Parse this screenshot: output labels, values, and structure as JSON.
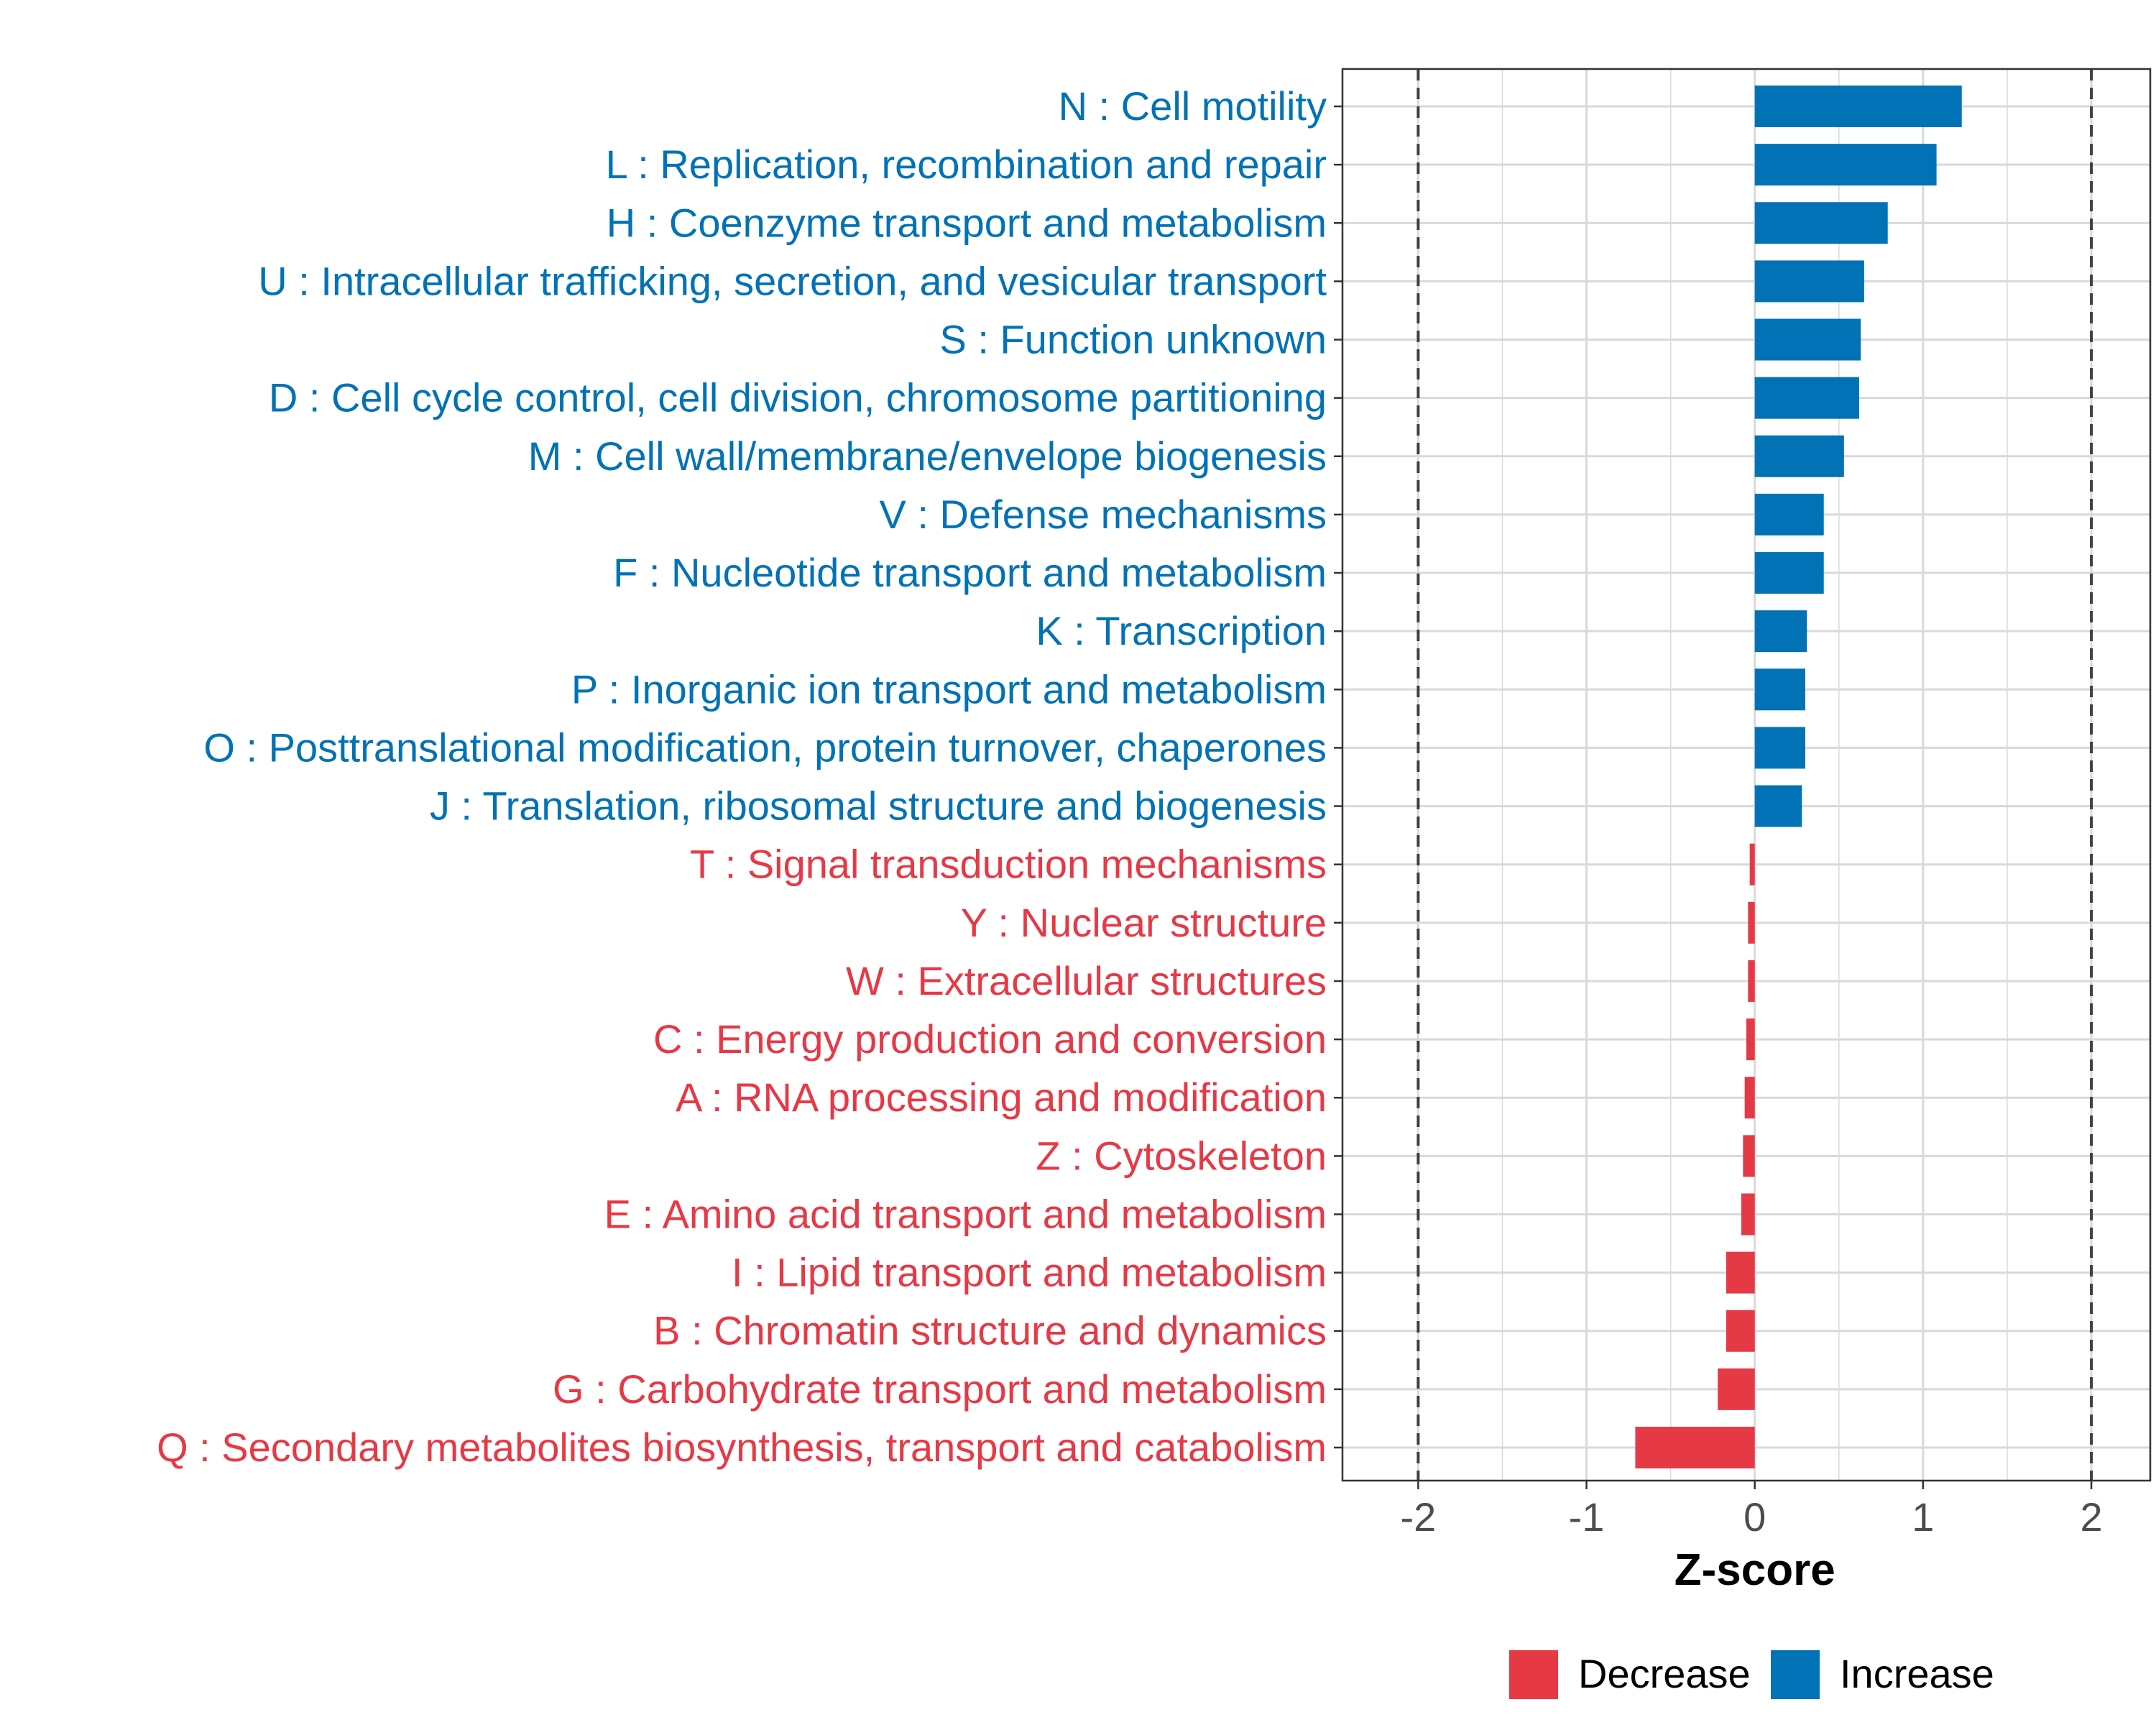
{
  "colors": {
    "increase": "#0072B5",
    "decrease": "#E63946",
    "grid": "#d9d9d9",
    "axis_text": "#4d4d4d",
    "ref_line": "#404040"
  },
  "chart_data": {
    "type": "bar",
    "orientation": "horizontal",
    "xlabel": "Z-score",
    "xlim": [
      -2.45,
      2.35
    ],
    "x_ticks": [
      -2,
      -1,
      0,
      1,
      2
    ],
    "x_tick_labels": [
      "-2",
      "-1",
      "0",
      "1",
      "2"
    ],
    "reference_lines": [
      -2,
      2
    ],
    "grid": true,
    "legend": {
      "position": "bottom",
      "entries": [
        {
          "label": "Decrease",
          "group": "decrease"
        },
        {
          "label": "Increase",
          "group": "increase"
        }
      ]
    },
    "categories": [
      "N : Cell motility",
      "L : Replication, recombination and repair",
      "H : Coenzyme transport and metabolism",
      "U : Intracellular trafficking, secretion, and vesicular transport",
      "S : Function unknown",
      "D : Cell cycle control, cell division, chromosome partitioning",
      "M : Cell wall/membrane/envelope biogenesis",
      "V : Defense mechanisms",
      "F : Nucleotide transport and metabolism",
      "K : Transcription",
      "P : Inorganic ion transport and metabolism",
      "O : Posttranslational modification, protein turnover, chaperones",
      "J : Translation, ribosomal structure and biogenesis",
      "T : Signal transduction mechanisms",
      "Y : Nuclear structure",
      "W : Extracellular structures",
      "C : Energy production and conversion",
      "A : RNA processing and modification",
      "Z : Cytoskeleton",
      "E : Amino acid transport and metabolism",
      "I : Lipid transport and metabolism",
      "B : Chromatin structure and dynamics",
      "G : Carbohydrate transport and metabolism",
      "Q : Secondary metabolites biosynthesis, transport and catabolism"
    ],
    "values": [
      1.23,
      1.08,
      0.79,
      0.65,
      0.63,
      0.62,
      0.53,
      0.41,
      0.41,
      0.31,
      0.3,
      0.3,
      0.28,
      -0.03,
      -0.04,
      -0.04,
      -0.05,
      -0.06,
      -0.07,
      -0.08,
      -0.17,
      -0.17,
      -0.22,
      -0.71
    ],
    "groups": [
      "increase",
      "increase",
      "increase",
      "increase",
      "increase",
      "increase",
      "increase",
      "increase",
      "increase",
      "increase",
      "increase",
      "increase",
      "increase",
      "decrease",
      "decrease",
      "decrease",
      "decrease",
      "decrease",
      "decrease",
      "decrease",
      "decrease",
      "decrease",
      "decrease",
      "decrease"
    ]
  }
}
